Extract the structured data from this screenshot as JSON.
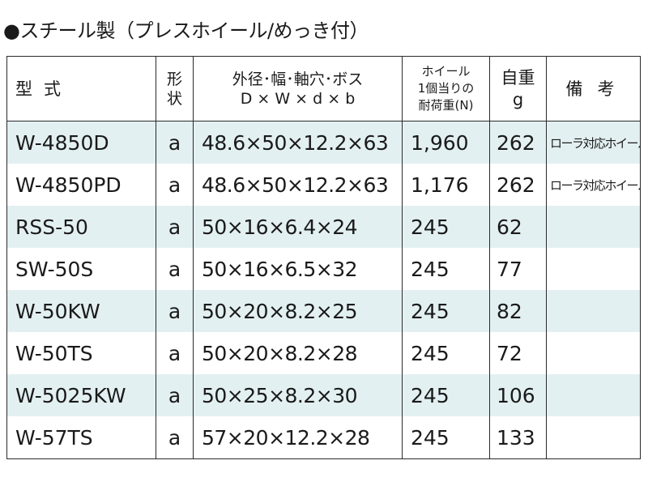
{
  "title": "●スチール製（プレスホイール/めっき付）",
  "headers": {
    "model": "型式",
    "shape_1": "形",
    "shape_2": "状",
    "dims_1": "外径･幅･軸穴･ボス",
    "dims_2": "D × W × d × b",
    "load_1": "ホイール",
    "load_2": "1個当りの",
    "load_3": "耐荷重(N)",
    "weight_1": "自重",
    "weight_2": "g",
    "note": "備考"
  },
  "rows": [
    {
      "model": "W-4850D",
      "shape": "a",
      "dims": "48.6×50×12.2×63",
      "load": "1,960",
      "weight": "262",
      "note": "ローラ対応ホイール"
    },
    {
      "model": "W-4850PD",
      "shape": "a",
      "dims": "48.6×50×12.2×63",
      "load": "1,176",
      "weight": "262",
      "note": "ローラ対応ホイール"
    },
    {
      "model": "RSS-50",
      "shape": "a",
      "dims": "50×16×6.4×24",
      "load": "245",
      "weight": "62",
      "note": ""
    },
    {
      "model": "SW-50S",
      "shape": "a",
      "dims": "50×16×6.5×32",
      "load": "245",
      "weight": "77",
      "note": ""
    },
    {
      "model": "W-50KW",
      "shape": "a",
      "dims": "50×20×8.2×25",
      "load": "245",
      "weight": "82",
      "note": ""
    },
    {
      "model": "W-50TS",
      "shape": "a",
      "dims": "50×20×8.2×28",
      "load": "245",
      "weight": "72",
      "note": ""
    },
    {
      "model": "W-5025KW",
      "shape": "a",
      "dims": "50×25×8.2×30",
      "load": "245",
      "weight": "106",
      "note": ""
    },
    {
      "model": "W-57TS",
      "shape": "a",
      "dims": "57×20×12.2×28",
      "load": "245",
      "weight": "133",
      "note": ""
    }
  ],
  "colors": {
    "row_shade": "#e3f0f2",
    "border": "#2a2a2a",
    "text": "#1a1a1a"
  }
}
